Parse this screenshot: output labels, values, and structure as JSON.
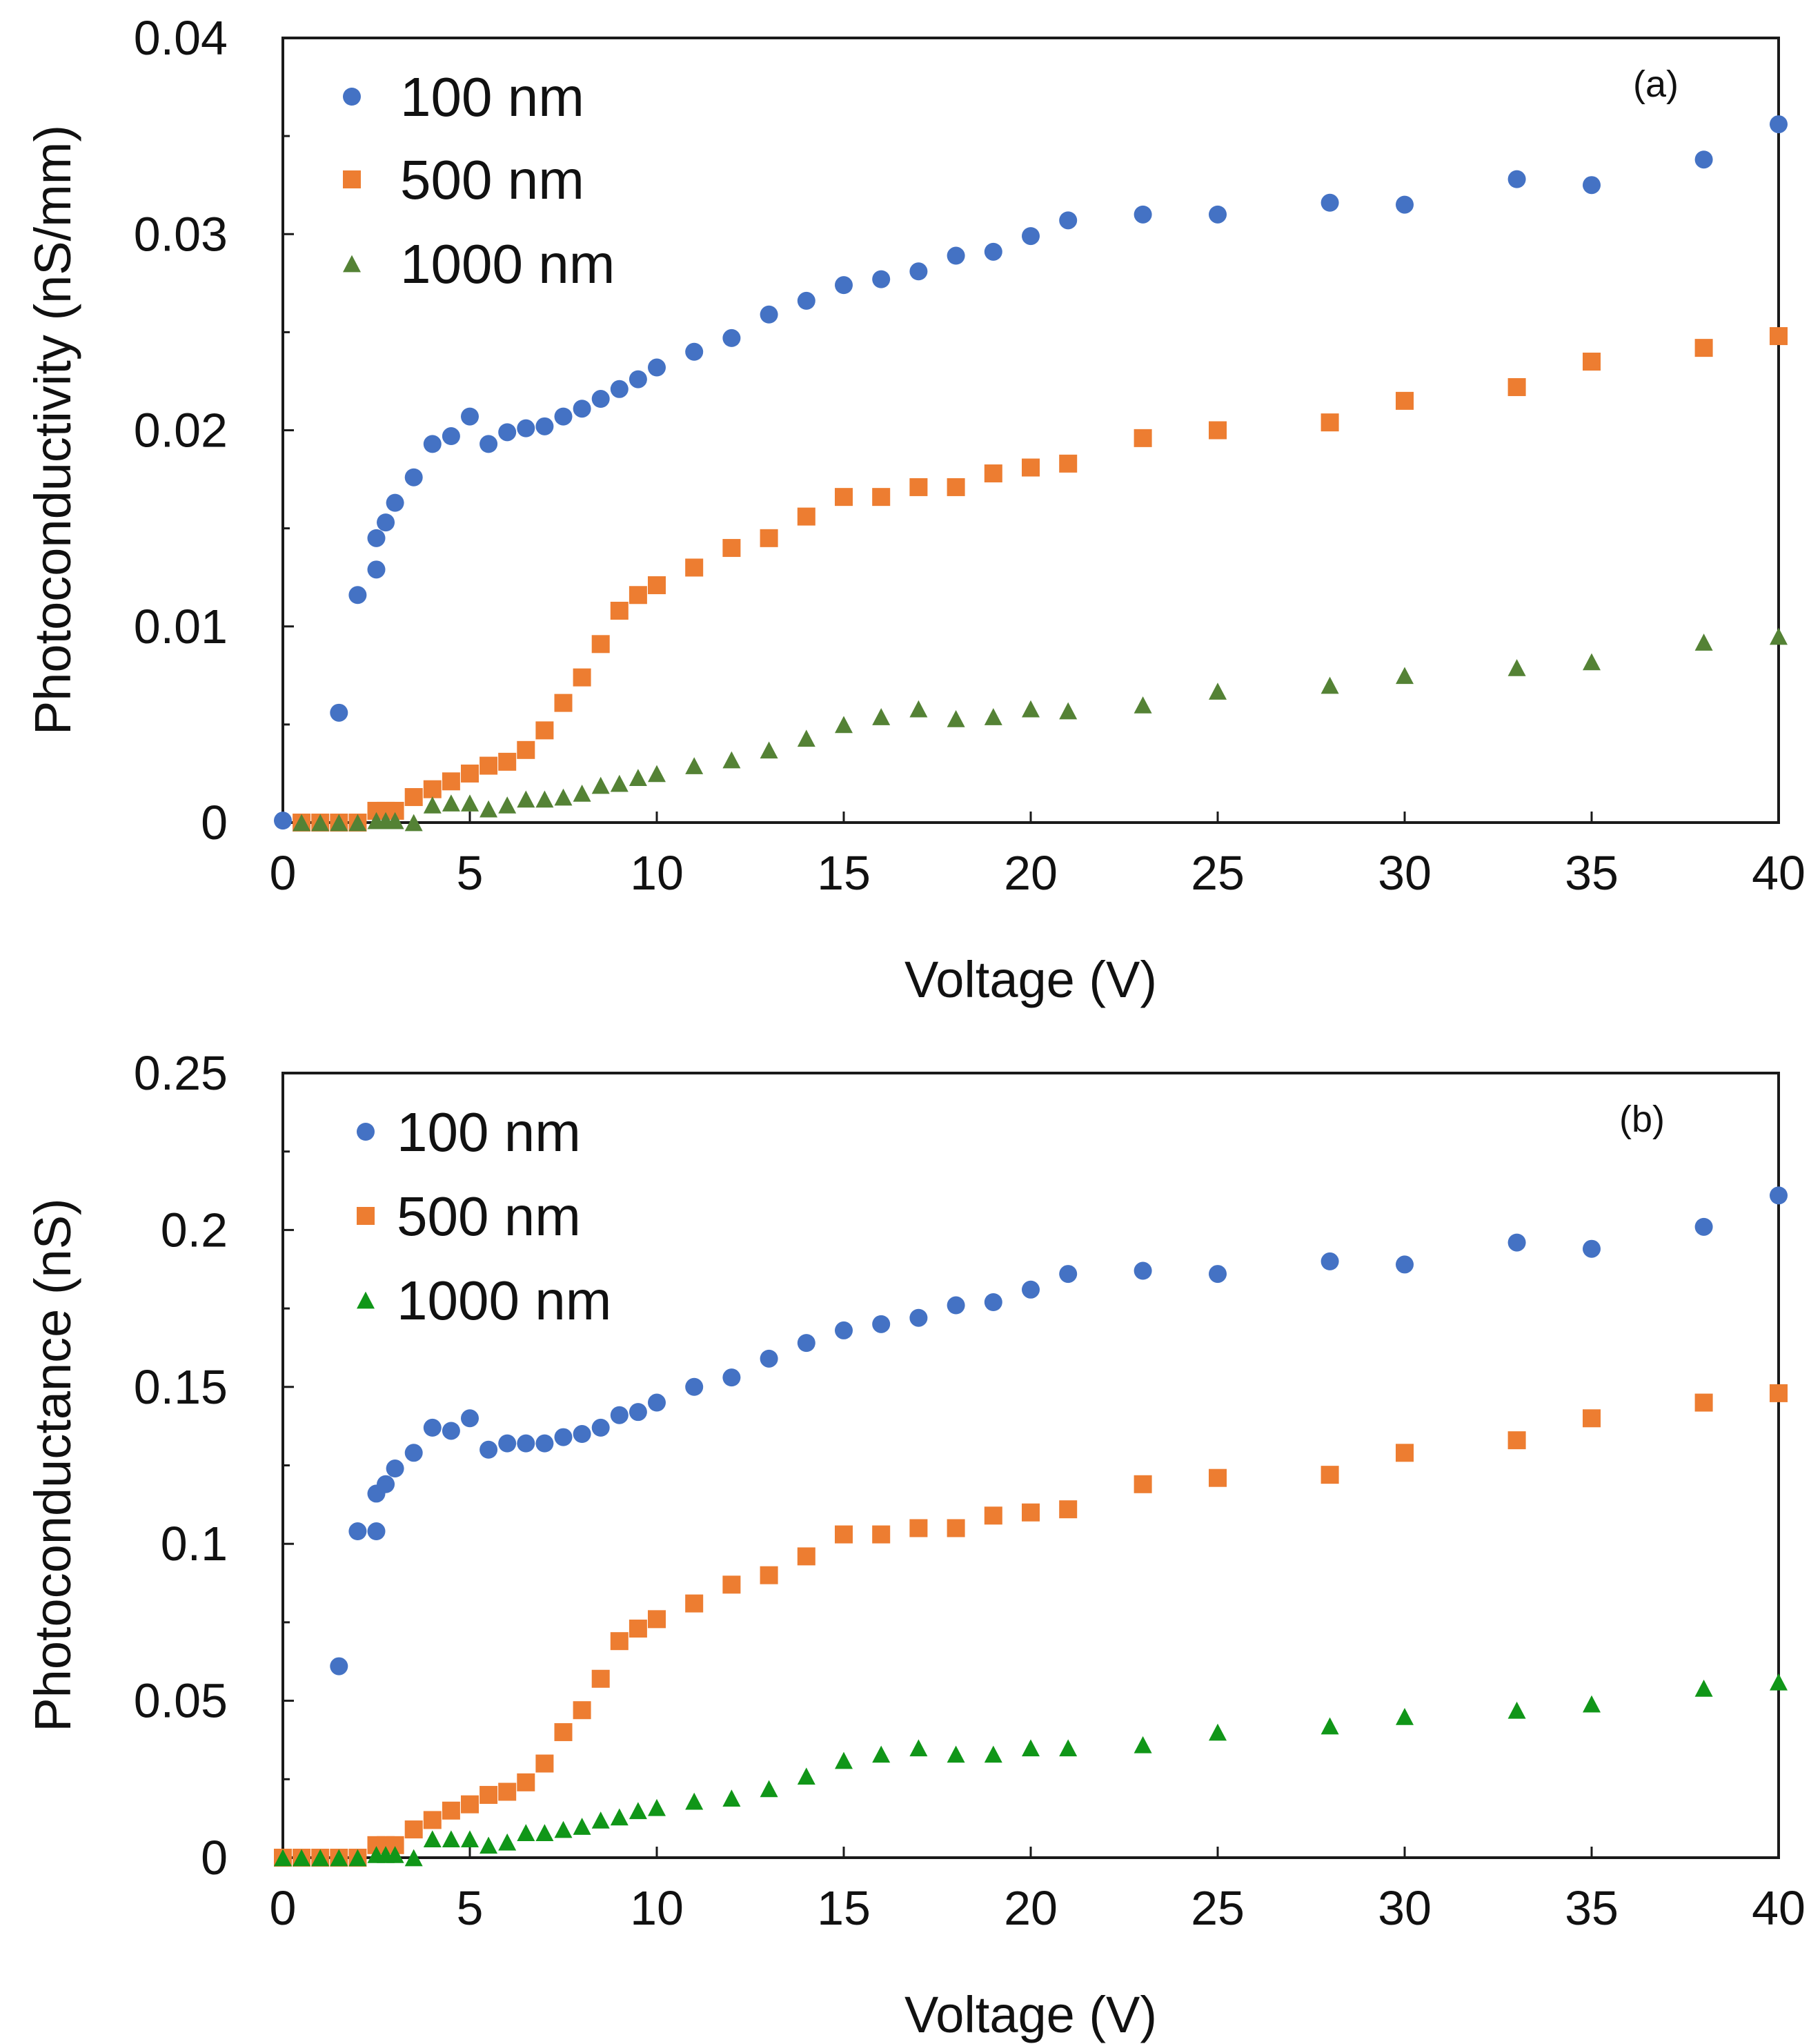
{
  "figure": {
    "colors": {
      "blue": "#4472C4",
      "orange": "#ED7D31",
      "olive_green": "#548235",
      "green": "#109618"
    }
  },
  "chart_data": [
    {
      "type": "scatter",
      "panel_label": "(a)",
      "xlabel": "Voltage (V)",
      "ylabel": "Photoconductivity (nS/mm)",
      "xlim": [
        0,
        40
      ],
      "ylim": [
        0,
        0.04
      ],
      "x_ticks": [
        0,
        5,
        10,
        15,
        20,
        25,
        30,
        35,
        40
      ],
      "x_tick_labels": [
        "0",
        "5",
        "10",
        "15",
        "20",
        "25",
        "30",
        "35",
        "40"
      ],
      "y_ticks": [
        0,
        0.01,
        0.02,
        0.03,
        0.04
      ],
      "y_tick_labels": [
        "0",
        "0.01",
        "0.02",
        "0.03",
        "0.04"
      ],
      "legend_position": "top-left",
      "series": [
        {
          "name": "100 nm",
          "marker": "circle",
          "color": "#4472C4",
          "x": [
            0,
            1.5,
            2,
            2.5,
            2.5,
            2.75,
            3,
            3.5,
            4,
            4.5,
            5,
            5.5,
            6,
            6.5,
            7,
            7.5,
            8,
            8.5,
            9,
            9.5,
            10,
            11,
            12,
            13,
            14,
            15,
            16,
            17,
            18,
            19,
            20,
            21,
            23,
            25,
            28,
            30,
            33,
            35,
            38,
            40
          ],
          "y": [
            0.0001,
            0.0056,
            0.0116,
            0.0129,
            0.0145,
            0.0153,
            0.0163,
            0.0176,
            0.0193,
            0.0197,
            0.0207,
            0.0193,
            0.0199,
            0.0201,
            0.0202,
            0.0207,
            0.0211,
            0.0216,
            0.0221,
            0.0226,
            0.0232,
            0.024,
            0.0247,
            0.0259,
            0.0266,
            0.0274,
            0.0277,
            0.0281,
            0.0289,
            0.0291,
            0.0299,
            0.0307,
            0.031,
            0.031,
            0.0316,
            0.0315,
            0.0328,
            0.0325,
            0.0338,
            0.0356
          ]
        },
        {
          "name": "500 nm",
          "marker": "square",
          "color": "#ED7D31",
          "x": [
            0.5,
            1,
            1.5,
            2,
            2.5,
            2.75,
            3,
            3.5,
            4,
            4.5,
            5,
            5.5,
            6,
            6.5,
            7,
            7.5,
            8,
            8.5,
            9,
            9.5,
            10,
            11,
            12,
            13,
            14,
            15,
            16,
            17,
            18,
            19,
            20,
            21,
            23,
            25,
            28,
            30,
            33,
            35,
            38,
            40
          ],
          "y": [
            0,
            0,
            0,
            0,
            0.0006,
            0.0006,
            0.0006,
            0.0013,
            0.0017,
            0.0021,
            0.0025,
            0.0029,
            0.0031,
            0.0037,
            0.0047,
            0.0061,
            0.0074,
            0.0091,
            0.0108,
            0.0116,
            0.0121,
            0.013,
            0.014,
            0.0145,
            0.0156,
            0.0166,
            0.0166,
            0.0171,
            0.0171,
            0.0178,
            0.0181,
            0.0183,
            0.0196,
            0.02,
            0.0204,
            0.0215,
            0.0222,
            0.0235,
            0.0242,
            0.0248
          ]
        },
        {
          "name": "1000 nm",
          "marker": "triangle",
          "color": "#548235",
          "x": [
            0.5,
            1,
            1.5,
            2,
            2.5,
            2.75,
            3,
            3.5,
            4,
            4.5,
            5,
            5.5,
            6,
            6.5,
            7,
            7.5,
            8,
            8.5,
            9,
            9.5,
            10,
            11,
            12,
            13,
            14,
            15,
            16,
            17,
            18,
            19,
            20,
            21,
            23,
            25,
            28,
            30,
            33,
            35,
            38,
            40
          ],
          "y": [
            0,
            0,
            0,
            0,
            0.0001,
            0.0001,
            0.0001,
            0,
            0.0009,
            0.001,
            0.001,
            0.0007,
            0.0009,
            0.0012,
            0.0012,
            0.0013,
            0.0015,
            0.0019,
            0.002,
            0.0023,
            0.0025,
            0.0029,
            0.0032,
            0.0037,
            0.0043,
            0.005,
            0.0054,
            0.0058,
            0.0053,
            0.0054,
            0.0058,
            0.0057,
            0.006,
            0.0067,
            0.007,
            0.0075,
            0.0079,
            0.0082,
            0.0092,
            0.0095
          ]
        }
      ]
    },
    {
      "type": "scatter",
      "panel_label": "(b)",
      "xlabel": "Voltage (V)",
      "ylabel": "Photoconductance (nS)",
      "xlim": [
        0,
        40
      ],
      "ylim": [
        0,
        0.25
      ],
      "x_ticks": [
        0,
        5,
        10,
        15,
        20,
        25,
        30,
        35,
        40
      ],
      "x_tick_labels": [
        "0",
        "5",
        "10",
        "15",
        "20",
        "25",
        "30",
        "35",
        "40"
      ],
      "y_ticks": [
        0,
        0.05,
        0.1,
        0.15,
        0.2,
        0.25
      ],
      "y_tick_labels": [
        "0",
        "0.05",
        "0.1",
        "0.15",
        "0.2",
        "0.25"
      ],
      "legend_position": "top-left",
      "series": [
        {
          "name": "100 nm",
          "marker": "circle",
          "color": "#4472C4",
          "x": [
            1.5,
            2,
            2.5,
            2.5,
            2.75,
            3,
            3.5,
            4,
            4.5,
            5,
            5.5,
            6,
            6.5,
            7,
            7.5,
            8,
            8.5,
            9,
            9.5,
            10,
            11,
            12,
            13,
            14,
            15,
            16,
            17,
            18,
            19,
            20,
            21,
            23,
            25,
            28,
            30,
            33,
            35,
            38,
            40
          ],
          "y": [
            0.061,
            0.104,
            0.104,
            0.116,
            0.119,
            0.124,
            0.129,
            0.137,
            0.136,
            0.14,
            0.13,
            0.132,
            0.132,
            0.132,
            0.134,
            0.135,
            0.137,
            0.141,
            0.142,
            0.145,
            0.15,
            0.153,
            0.159,
            0.164,
            0.168,
            0.17,
            0.172,
            0.176,
            0.177,
            0.181,
            0.186,
            0.187,
            0.186,
            0.19,
            0.189,
            0.196,
            0.194,
            0.201,
            0.211
          ]
        },
        {
          "name": "500 nm",
          "marker": "square",
          "color": "#ED7D31",
          "x": [
            0,
            0.5,
            1,
            1.5,
            2,
            2.5,
            2.75,
            3,
            3.5,
            4,
            4.5,
            5,
            5.5,
            6,
            6.5,
            7,
            7.5,
            8,
            8.5,
            9,
            9.5,
            10,
            11,
            12,
            13,
            14,
            15,
            16,
            17,
            18,
            19,
            20,
            21,
            23,
            25,
            28,
            30,
            33,
            35,
            38,
            40
          ],
          "y": [
            0,
            0,
            0,
            0,
            0,
            0.004,
            0.004,
            0.004,
            0.009,
            0.012,
            0.015,
            0.017,
            0.02,
            0.021,
            0.024,
            0.03,
            0.04,
            0.047,
            0.057,
            0.069,
            0.073,
            0.076,
            0.081,
            0.087,
            0.09,
            0.096,
            0.103,
            0.103,
            0.105,
            0.105,
            0.109,
            0.11,
            0.111,
            0.119,
            0.121,
            0.122,
            0.129,
            0.133,
            0.14,
            0.145,
            0.148
          ]
        },
        {
          "name": "1000 nm",
          "marker": "triangle",
          "color": "#109618",
          "x": [
            0,
            0.5,
            1,
            1.5,
            2,
            2.5,
            2.75,
            3,
            3.5,
            4,
            4.5,
            5,
            5.5,
            6,
            6.5,
            7,
            7.5,
            8,
            8.5,
            9,
            9.5,
            10,
            11,
            12,
            13,
            14,
            15,
            16,
            17,
            18,
            19,
            20,
            21,
            23,
            25,
            28,
            30,
            33,
            35,
            38,
            40
          ],
          "y": [
            0,
            0,
            0,
            0,
            0,
            0.001,
            0.001,
            0.001,
            0,
            0.006,
            0.006,
            0.006,
            0.004,
            0.005,
            0.008,
            0.008,
            0.009,
            0.01,
            0.012,
            0.013,
            0.015,
            0.016,
            0.018,
            0.019,
            0.022,
            0.026,
            0.031,
            0.033,
            0.035,
            0.033,
            0.033,
            0.035,
            0.035,
            0.036,
            0.04,
            0.042,
            0.045,
            0.047,
            0.049,
            0.054,
            0.056
          ]
        }
      ]
    }
  ]
}
